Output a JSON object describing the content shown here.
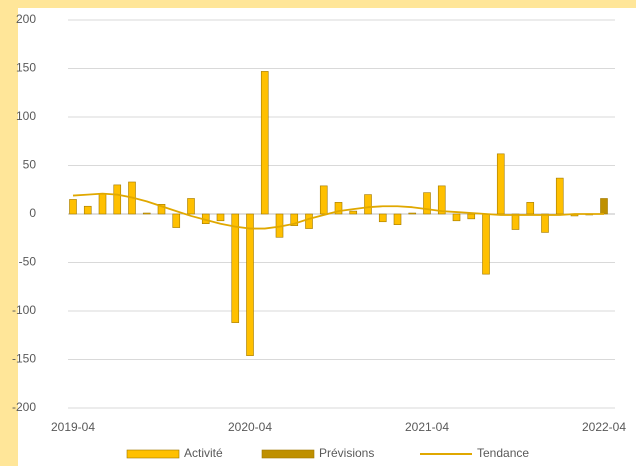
{
  "chart_data": {
    "type": "bar",
    "categories": [
      "2019-04",
      null,
      null,
      null,
      null,
      null,
      null,
      null,
      null,
      null,
      null,
      null,
      "2020-04",
      null,
      null,
      null,
      null,
      null,
      null,
      null,
      null,
      null,
      null,
      null,
      "2021-04",
      null,
      null,
      null,
      null,
      null,
      null,
      null,
      null,
      null,
      null,
      null,
      "2022-04"
    ],
    "series": [
      {
        "name": "Activité",
        "type": "bar",
        "color": "#ffc000",
        "values": [
          15,
          8,
          21,
          30,
          33,
          1,
          10,
          -14,
          16,
          -10,
          -7,
          -112,
          -146,
          147,
          -24,
          -12,
          -15,
          29,
          12,
          3,
          20,
          -8,
          -11,
          1,
          22,
          29,
          -7,
          -5,
          -62,
          62,
          -16,
          12,
          -19,
          37,
          -2,
          -1,
          null
        ]
      },
      {
        "name": "Prévisions",
        "type": "bar",
        "color": "#bf9000",
        "values": [
          null,
          null,
          null,
          null,
          null,
          null,
          null,
          null,
          null,
          null,
          null,
          null,
          null,
          null,
          null,
          null,
          null,
          null,
          null,
          null,
          null,
          null,
          null,
          null,
          null,
          null,
          null,
          null,
          null,
          null,
          null,
          null,
          null,
          null,
          null,
          null,
          16
        ]
      },
      {
        "name": "Tendance",
        "type": "line",
        "color": "#e0a800",
        "values": [
          19,
          20,
          21,
          20,
          17,
          13,
          8,
          3,
          -2,
          -6,
          -10,
          -13,
          -15,
          -15,
          -13,
          -10,
          -5,
          -1,
          3,
          5,
          7,
          8,
          8,
          7,
          5,
          3,
          2,
          1,
          0,
          -1,
          -1,
          -1,
          -1,
          -1,
          0,
          0,
          0
        ]
      }
    ],
    "ylim": [
      -200,
      200
    ],
    "yticks": [
      -200,
      -150,
      -100,
      -50,
      0,
      50,
      100,
      150,
      200
    ],
    "grid": true,
    "legend": "bottom"
  }
}
